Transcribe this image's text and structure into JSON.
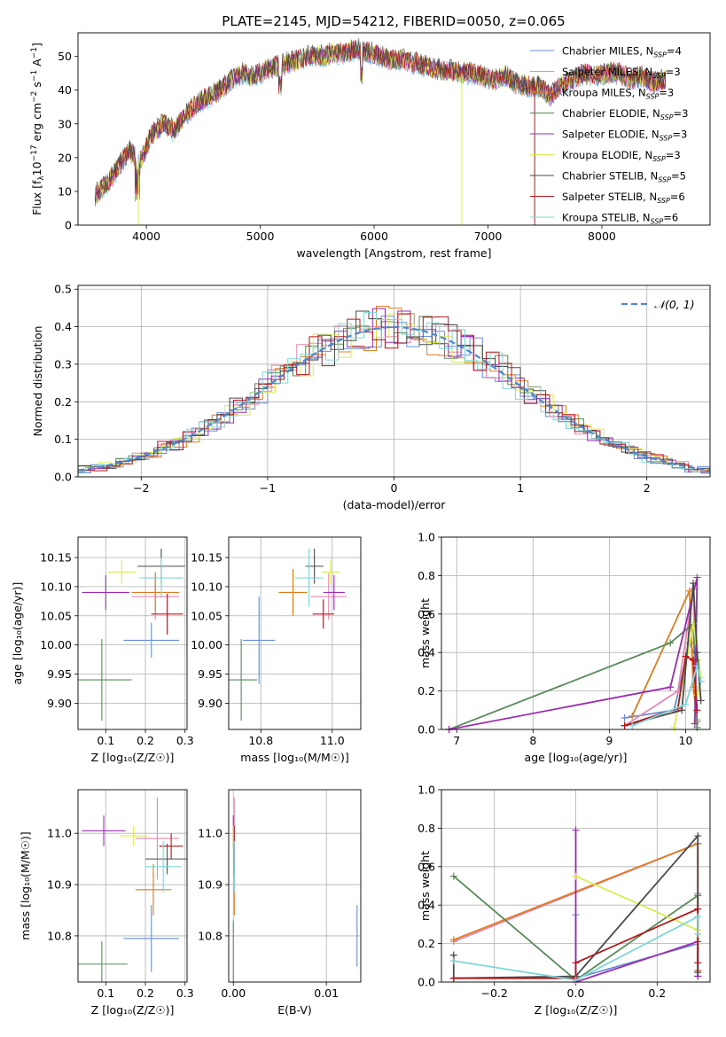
{
  "figure": {
    "title": "PLATE=2145, MJD=54212, FIBERID=0050, z=0.065"
  },
  "colors": {
    "chabrier_miles": "#6a8fd6",
    "salpeter_miles": "#e887b2",
    "kroupa_miles": "#e07b1f",
    "chabrier_elodie": "#5a8a5a",
    "salpeter_elodie": "#9a2db0",
    "kroupa_elodie": "#d9ec52",
    "chabrier_stelib": "#4a4a4a",
    "salpeter_stelib": "#b3161b",
    "kroupa_stelib": "#7fd6d9",
    "gaussian": "#4f86d0",
    "grid": "#b0b0b0"
  },
  "legend_labels": [
    {
      "key": "chabrier_miles",
      "pre": "Chabrier MILES, N",
      "n": "=4"
    },
    {
      "key": "salpeter_miles",
      "pre": "Salpeter MILES, N",
      "n": "=3"
    },
    {
      "key": "kroupa_miles",
      "pre": "Kroupa MILES, N",
      "n": "=3"
    },
    {
      "key": "chabrier_elodie",
      "pre": "Chabrier ELODIE, N",
      "n": "=3"
    },
    {
      "key": "salpeter_elodie",
      "pre": "Salpeter ELODIE, N",
      "n": "=3"
    },
    {
      "key": "kroupa_elodie",
      "pre": "Kroupa ELODIE, N",
      "n": "=3"
    },
    {
      "key": "chabrier_stelib",
      "pre": "Chabrier STELIB, N",
      "n": "=5"
    },
    {
      "key": "salpeter_stelib",
      "pre": "Salpeter STELIB, N",
      "n": "=6"
    },
    {
      "key": "kroupa_stelib",
      "pre": "Kroupa STELIB, N",
      "n": "=6"
    }
  ],
  "chart_data": [
    {
      "id": "spectrum",
      "type": "line",
      "title": "PLATE=2145, MJD=54212, FIBERID=0050, z=0.065",
      "xlabel": "wavelength [Angstrom, rest frame]",
      "ylabel_main": "Flux [f",
      "ylabel_sub": "λ",
      "ylabel_mid": "10",
      "ylabel_sup1": "−17",
      "ylabel_rest1": " erg cm",
      "ylabel_sup2": "−2",
      "ylabel_rest2": " s",
      "ylabel_sup3": "−1",
      "ylabel_rest3": " A",
      "ylabel_sup4": "−1",
      "ylabel_end": "]",
      "xlim": [
        3400,
        8950
      ],
      "ylim": [
        0,
        57
      ],
      "xticks": [
        "4000",
        "5000",
        "6000",
        "7000",
        "8000"
      ],
      "xtick_values": [
        4000,
        5000,
        6000,
        7000,
        8000
      ],
      "yticks": [
        "0",
        "10",
        "20",
        "30",
        "40",
        "50"
      ],
      "ytick_values": [
        0,
        10,
        20,
        30,
        40,
        50
      ],
      "x": [
        3550,
        3650,
        3750,
        3850,
        3950,
        4050,
        4150,
        4250,
        4350,
        4450,
        4550,
        4650,
        4750,
        4850,
        4950,
        5050,
        5150,
        5250,
        5350,
        5450,
        5550,
        5650,
        5750,
        5850,
        5950,
        6050,
        6150,
        6250,
        6350,
        6450,
        6550,
        6650,
        6750,
        6850,
        6950,
        7050,
        7150,
        7250,
        7350,
        7450,
        7550,
        7650,
        7750,
        7850,
        7950,
        8050,
        8150,
        8250,
        8350,
        8450,
        8550
      ],
      "y": [
        9,
        12,
        17,
        22,
        19,
        27,
        30,
        28,
        33,
        36,
        38,
        40,
        43,
        45,
        44,
        46,
        47,
        48,
        49,
        50,
        50,
        51,
        51,
        52,
        51,
        50,
        49,
        49,
        48,
        47,
        46,
        46,
        45,
        45,
        44,
        43,
        44,
        42,
        41,
        41,
        38,
        42,
        43,
        45,
        44,
        45,
        45,
        43,
        44,
        42,
        43
      ],
      "dips": [
        {
          "x": 3930,
          "y": 0,
          "series": "kroupa_elodie"
        },
        {
          "x": 6770,
          "y": 0,
          "series": "kroupa_elodie"
        },
        {
          "x": 7410,
          "y": 0,
          "series": "salpeter_stelib"
        }
      ],
      "legend_position": "upper right"
    },
    {
      "id": "residuals",
      "type": "line",
      "xlabel": "(data-model)/error",
      "ylabel": "Normed distribution",
      "xlim": [
        -2.5,
        2.5
      ],
      "ylim": [
        0,
        0.51
      ],
      "xticks": [
        "−2",
        "−1",
        "0",
        "1",
        "2"
      ],
      "xtick_values": [
        -2,
        -1,
        0,
        1,
        2
      ],
      "yticks": [
        "0.0",
        "0.1",
        "0.2",
        "0.3",
        "0.4",
        "0.5"
      ],
      "ytick_values": [
        0,
        0.1,
        0.2,
        0.3,
        0.4,
        0.5
      ],
      "grid": true,
      "legend_label": "𝒩(0, 1)",
      "legend_position": "upper right",
      "bin_width": 0.1
    },
    {
      "id": "age_vs_Z",
      "type": "scatter",
      "xlabel": "Z [log₁₀(Z/Z☉)]",
      "ylabel": "age  [log₁₀(age/yr)]",
      "xlim": [
        0.03,
        0.305
      ],
      "ylim": [
        9.855,
        10.185
      ],
      "xticks": [
        "0.1",
        "0.2",
        "0.3"
      ],
      "xtick_values": [
        0.1,
        0.2,
        0.3
      ],
      "yticks": [
        "9.90",
        "9.95",
        "10.00",
        "10.05",
        "10.10",
        "10.15"
      ],
      "ytick_values": [
        9.9,
        9.95,
        10.0,
        10.05,
        10.1,
        10.15
      ],
      "grid": true,
      "points": [
        {
          "series": "chabrier_miles",
          "x": 0.215,
          "y": 10.008,
          "xerr": 0.07,
          "yerr": 0.03
        },
        {
          "series": "salpeter_miles",
          "x": 0.225,
          "y": 10.083,
          "xerr": 0.06,
          "yerr": 0.04
        },
        {
          "series": "kroupa_miles",
          "x": 0.225,
          "y": 10.09,
          "xerr": 0.06,
          "yerr": 0.035
        },
        {
          "series": "chabrier_elodie",
          "x": 0.09,
          "y": 9.94,
          "xerr": 0.075,
          "yerr": 0.07
        },
        {
          "series": "salpeter_elodie",
          "x": 0.1,
          "y": 10.09,
          "xerr": 0.06,
          "yerr": 0.03
        },
        {
          "series": "kroupa_elodie",
          "x": 0.14,
          "y": 10.125,
          "xerr": 0.035,
          "yerr": 0.02
        },
        {
          "series": "chabrier_stelib",
          "x": 0.24,
          "y": 10.135,
          "xerr": 0.06,
          "yerr": 0.03
        },
        {
          "series": "salpeter_stelib",
          "x": 0.255,
          "y": 10.053,
          "xerr": 0.04,
          "yerr": 0.035
        },
        {
          "series": "kroupa_stelib",
          "x": 0.24,
          "y": 10.115,
          "xerr": 0.055,
          "yerr": 0.035
        }
      ]
    },
    {
      "id": "age_vs_mass",
      "type": "scatter",
      "xlabel": "mass [log₁₀(M/M☉)]",
      "ylabel": "",
      "xlim": [
        10.71,
        11.08
      ],
      "ylim": [
        9.855,
        10.185
      ],
      "xticks": [
        "10.8",
        "11.0"
      ],
      "xtick_values": [
        10.8,
        11.0
      ],
      "yticks": [
        "9.90",
        "9.95",
        "10.00",
        "10.05",
        "10.10",
        "10.15"
      ],
      "ytick_values": [
        9.9,
        9.95,
        10.0,
        10.05,
        10.1,
        10.15
      ],
      "grid": true,
      "points": [
        {
          "series": "chabrier_miles",
          "x": 10.795,
          "y": 10.008,
          "xerr": 0.045,
          "yerr": 0.075
        },
        {
          "series": "salpeter_miles",
          "x": 10.99,
          "y": 10.083,
          "xerr": 0.05,
          "yerr": 0.04
        },
        {
          "series": "kroupa_miles",
          "x": 10.89,
          "y": 10.09,
          "xerr": 0.04,
          "yerr": 0.04
        },
        {
          "series": "chabrier_elodie",
          "x": 10.745,
          "y": 9.94,
          "xerr": 0.045,
          "yerr": 0.07
        },
        {
          "series": "salpeter_elodie",
          "x": 11.005,
          "y": 10.09,
          "xerr": 0.03,
          "yerr": 0.03
        },
        {
          "series": "kroupa_elodie",
          "x": 10.995,
          "y": 10.125,
          "xerr": 0.025,
          "yerr": 0.02
        },
        {
          "series": "chabrier_stelib",
          "x": 10.95,
          "y": 10.135,
          "xerr": 0.025,
          "yerr": 0.03
        },
        {
          "series": "salpeter_stelib",
          "x": 10.975,
          "y": 10.053,
          "xerr": 0.03,
          "yerr": 0.025
        },
        {
          "series": "kroupa_stelib",
          "x": 10.935,
          "y": 10.115,
          "xerr": 0.04,
          "yerr": 0.05
        }
      ]
    },
    {
      "id": "weight_vs_age",
      "type": "line",
      "xlabel": "age  [log₁₀(age/yr)]",
      "ylabel": "mass weight",
      "xlim": [
        6.8,
        10.32
      ],
      "ylim": [
        0,
        1
      ],
      "xticks": [
        "7",
        "8",
        "9",
        "10"
      ],
      "xtick_values": [
        7,
        8,
        9,
        10
      ],
      "yticks": [
        "0.0",
        "0.2",
        "0.4",
        "0.6",
        "0.8",
        "1.0"
      ],
      "ytick_values": [
        0,
        0.2,
        0.4,
        0.6,
        0.8,
        1.0
      ],
      "grid": true,
      "series": [
        {
          "key": "chabrier_miles",
          "x": [
            9.2,
            9.85,
            10.05,
            10.15
          ],
          "y": [
            0.06,
            0.1,
            0.45,
            0.36
          ]
        },
        {
          "key": "salpeter_miles",
          "x": [
            9.2,
            9.9,
            10.1,
            10.15
          ],
          "y": [
            0.02,
            0.2,
            0.73,
            0.05
          ]
        },
        {
          "key": "kroupa_miles",
          "x": [
            9.3,
            10.05,
            10.1,
            10.15
          ],
          "y": [
            0.07,
            0.72,
            0.22,
            0.04
          ]
        },
        {
          "key": "chabrier_elodie",
          "x": [
            6.9,
            9.8,
            10.1,
            10.15
          ],
          "y": [
            0.0,
            0.45,
            0.55,
            0.01
          ]
        },
        {
          "key": "salpeter_elodie",
          "x": [
            6.9,
            9.8,
            10.15,
            10.12
          ],
          "y": [
            0.0,
            0.22,
            0.79,
            0.03
          ]
        },
        {
          "key": "kroupa_elodie",
          "x": [
            9.85,
            10.1,
            10.2,
            10.15
          ],
          "y": [
            0.01,
            0.55,
            0.27,
            0.18
          ]
        },
        {
          "key": "chabrier_stelib",
          "x": [
            9.2,
            9.95,
            10.1,
            10.15,
            10.2
          ],
          "y": [
            0.02,
            0.1,
            0.76,
            0.4,
            0.15
          ]
        },
        {
          "key": "salpeter_stelib",
          "x": [
            9.2,
            9.9,
            10.0,
            10.1,
            10.15
          ],
          "y": [
            0.02,
            0.11,
            0.38,
            0.36,
            0.1
          ]
        },
        {
          "key": "kroupa_stelib",
          "x": [
            9.3,
            10.0,
            10.15,
            10.2
          ],
          "y": [
            0.02,
            0.13,
            0.33,
            0.25
          ]
        }
      ]
    },
    {
      "id": "mass_vs_Z",
      "type": "scatter",
      "xlabel": "Z [log₁₀(Z/Z☉)]",
      "ylabel": "mass [log₁₀(M/M☉)]",
      "xlim": [
        0.03,
        0.305
      ],
      "ylim": [
        10.71,
        11.085
      ],
      "xticks": [
        "0.1",
        "0.2",
        "0.3"
      ],
      "xtick_values": [
        0.1,
        0.2,
        0.3
      ],
      "yticks": [
        "10.8",
        "10.9",
        "11.0"
      ],
      "ytick_values": [
        10.8,
        10.9,
        11.0
      ],
      "grid": true,
      "points": [
        {
          "series": "chabrier_miles",
          "x": 0.215,
          "y": 10.795,
          "xerr": 0.07,
          "yerr": 0.065
        },
        {
          "series": "salpeter_miles",
          "x": 0.23,
          "y": 10.99,
          "xerr": 0.055,
          "yerr": 0.08
        },
        {
          "series": "kroupa_miles",
          "x": 0.22,
          "y": 10.89,
          "xerr": 0.045,
          "yerr": 0.05
        },
        {
          "series": "chabrier_elodie",
          "x": 0.09,
          "y": 10.745,
          "xerr": 0.065,
          "yerr": 0.045
        },
        {
          "series": "salpeter_elodie",
          "x": 0.095,
          "y": 11.005,
          "xerr": 0.055,
          "yerr": 0.03
        },
        {
          "series": "kroupa_elodie",
          "x": 0.17,
          "y": 10.995,
          "xerr": 0.035,
          "yerr": 0.02
        },
        {
          "series": "chabrier_stelib",
          "x": 0.255,
          "y": 10.95,
          "xerr": 0.055,
          "yerr": 0.03
        },
        {
          "series": "salpeter_stelib",
          "x": 0.265,
          "y": 10.975,
          "xerr": 0.03,
          "yerr": 0.025
        },
        {
          "series": "kroupa_stelib",
          "x": 0.245,
          "y": 10.935,
          "xerr": 0.045,
          "yerr": 0.05
        }
      ]
    },
    {
      "id": "mass_vs_EBV",
      "type": "scatter",
      "xlabel": "E(B-V)",
      "ylabel": "",
      "xlim": [
        -0.0005,
        0.0137
      ],
      "ylim": [
        10.71,
        11.085
      ],
      "xticks": [
        "0.00",
        "0.01"
      ],
      "xtick_values": [
        0.0,
        0.01
      ],
      "yticks": [
        "10.8",
        "10.9",
        "11.0"
      ],
      "ytick_values": [
        10.8,
        10.9,
        11.0
      ],
      "grid": true,
      "points": [
        {
          "series": "chabrier_miles",
          "x": 0.0133,
          "y": 10.8,
          "xerr": 0,
          "yerr": 0.06
        },
        {
          "series": "salpeter_miles",
          "x": 0.0001,
          "y": 10.99,
          "xerr": 0,
          "yerr": 0.08
        },
        {
          "series": "kroupa_miles",
          "x": 0.0001,
          "y": 10.89,
          "xerr": 0,
          "yerr": 0.05
        },
        {
          "series": "chabrier_elodie",
          "x": 0.0,
          "y": 10.77,
          "xerr": 0,
          "yerr": 0.06
        },
        {
          "series": "salpeter_elodie",
          "x": 0.0,
          "y": 11.005,
          "xerr": 0,
          "yerr": 0.03
        },
        {
          "series": "kroupa_elodie",
          "x": 0.0,
          "y": 10.995,
          "xerr": 0,
          "yerr": 0.02
        },
        {
          "series": "chabrier_stelib",
          "x": 0.0001,
          "y": 10.95,
          "xerr": 0,
          "yerr": 0.03
        },
        {
          "series": "salpeter_stelib",
          "x": 0.0001,
          "y": 10.975,
          "xerr": 0,
          "yerr": 0.04
        },
        {
          "series": "kroupa_stelib",
          "x": 0.0001,
          "y": 10.935,
          "xerr": 0,
          "yerr": 0.05
        }
      ]
    },
    {
      "id": "weight_vs_Z",
      "type": "line",
      "xlabel": "Z [log₁₀(Z/Z☉)]",
      "ylabel": "mass weight",
      "xlim": [
        -0.33,
        0.33
      ],
      "ylim": [
        0,
        1
      ],
      "xticks": [
        "−0.2",
        "0.0",
        "0.2"
      ],
      "xtick_values": [
        -0.2,
        0.0,
        0.2
      ],
      "yticks": [
        "0.0",
        "0.2",
        "0.4",
        "0.6",
        "0.8",
        "1.0"
      ],
      "ytick_values": [
        0,
        0.2,
        0.4,
        0.6,
        0.8,
        1.0
      ],
      "grid": true,
      "series": [
        {
          "key": "chabrier_miles",
          "x": [
            0.0,
            0.0,
            0.3,
            0.3
          ],
          "y": [
            0.35,
            0.02,
            0.2,
            0.46
          ]
        },
        {
          "key": "salpeter_miles",
          "x": [
            -0.3,
            0.3,
            0.3
          ],
          "y": [
            0.21,
            0.72,
            0.06
          ]
        },
        {
          "key": "kroupa_miles",
          "x": [
            -0.3,
            0.3,
            0.3
          ],
          "y": [
            0.22,
            0.72,
            0.06
          ]
        },
        {
          "key": "chabrier_elodie",
          "x": [
            -0.3,
            0.0,
            0.3,
            0.3
          ],
          "y": [
            0.55,
            0.01,
            0.45,
            0.03
          ]
        },
        {
          "key": "salpeter_elodie",
          "x": [
            0.0,
            0.0,
            0.3,
            0.3
          ],
          "y": [
            0.79,
            0.0,
            0.21,
            0.03
          ]
        },
        {
          "key": "kroupa_elodie",
          "x": [
            0.0,
            0.3,
            0.3
          ],
          "y": [
            0.55,
            0.27,
            0.2
          ]
        },
        {
          "key": "chabrier_stelib",
          "x": [
            -0.3,
            -0.3,
            0.0,
            0.3,
            0.3
          ],
          "y": [
            0.14,
            0.02,
            0.03,
            0.76,
            0.05
          ]
        },
        {
          "key": "salpeter_stelib",
          "x": [
            -0.3,
            0.0,
            0.0,
            0.3,
            0.3
          ],
          "y": [
            0.02,
            0.02,
            0.1,
            0.38,
            0.1
          ]
        },
        {
          "key": "kroupa_stelib",
          "x": [
            -0.3,
            0.0,
            0.3,
            0.3
          ],
          "y": [
            0.11,
            0.01,
            0.34,
            0.25
          ]
        }
      ]
    }
  ]
}
